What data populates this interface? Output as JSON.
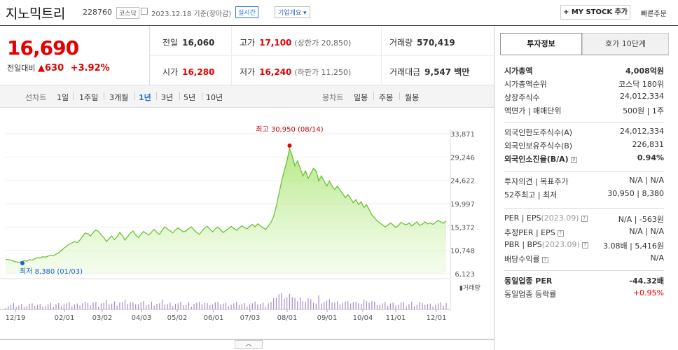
{
  "header": {
    "name": "지노믹트리",
    "code": "228760",
    "market": "코스닥",
    "asof": "2023.12.18 기준(장마감)",
    "realtime": "실시간",
    "company_info": "기업개요 ▾",
    "mystock": "+ MY STOCK 추가",
    "quick_order": "빠른주문"
  },
  "price": {
    "current": "16,690",
    "change_label": "전일대비",
    "change_arrow": "▲",
    "change": "630",
    "change_pct": "+3.92%"
  },
  "stats": {
    "prev_label": "전일",
    "prev": "16,060",
    "high_label": "고가",
    "high": "17,100",
    "upper_limit": "(상한가 20,850)",
    "volume_label": "거래량",
    "volume": "570,419",
    "open_label": "시가",
    "open": "16,280",
    "low_label": "저가",
    "low": "16,240",
    "lower_limit": "(하한가 11,250)",
    "value_label": "거래대금",
    "value": "9,547 백만"
  },
  "periods": {
    "line_label": "선차트",
    "items": [
      "1일",
      "1주일",
      "3개월",
      "1년",
      "3년",
      "5년",
      "10년"
    ],
    "selected": "1년",
    "candle_label": "봉차트",
    "candle_items": [
      "일봉",
      "주봉",
      "월봉"
    ]
  },
  "chart_data": {
    "type": "area",
    "y_ticks": [
      "33,871",
      "29,246",
      "24,622",
      "19,997",
      "15,372",
      "10,748",
      "6,123"
    ],
    "ylim": [
      6123,
      33871
    ],
    "x_ticks": [
      "12/19",
      "02/01",
      "03/02",
      "04/03",
      "05/02",
      "06/01",
      "07/03",
      "08/01",
      "09/01",
      "10/04",
      "11/01",
      "12/01"
    ],
    "high_annotation": "최고 30,950 (08/14)",
    "low_annotation": "최저 8,380 (01/03)",
    "volume_legend": "거래량",
    "series": [
      {
        "values": [
          9000,
          8900,
          8800,
          8600,
          8450,
          8380,
          8500,
          8700,
          8600,
          8900,
          8800,
          9100,
          9300,
          9200,
          9500,
          9400,
          9600,
          9800,
          9700,
          10000,
          10300,
          10700,
          11200,
          11600,
          12000,
          12200,
          12500,
          12300,
          12800,
          13500,
          14200,
          14000,
          13600,
          14300,
          14800,
          14500,
          13800,
          13300,
          12500,
          13100,
          13600,
          12900,
          13400,
          14300,
          13700,
          12800,
          13500,
          14200,
          14600,
          13800,
          13300,
          13900,
          14500,
          14100,
          13800,
          14400,
          14900,
          14300,
          13900,
          14800,
          15400,
          15000,
          14600,
          14200,
          14800,
          15200,
          14800,
          14400,
          14600,
          15100,
          15400,
          14800,
          14300,
          13900,
          14600,
          15200,
          15500,
          14900,
          14400,
          15000,
          15400,
          14800,
          14300,
          14700,
          15100,
          15500,
          15100,
          14700,
          15200,
          15600,
          15300,
          15000,
          15500,
          15900,
          15400,
          16000,
          15600,
          15200,
          14900,
          15600,
          16300,
          17500,
          19500,
          22000,
          24500,
          26500,
          28500,
          30950,
          29500,
          27500,
          28500,
          27000,
          25500,
          26500,
          25000,
          26000,
          27000,
          26500,
          24500,
          25500,
          24500,
          23500,
          24500,
          23500,
          22800,
          23500,
          22700,
          22000,
          21200,
          21800,
          21000,
          20200,
          20800,
          19800,
          20400,
          19200,
          19800,
          18800,
          17800,
          17200,
          16600,
          16200,
          15800,
          15400,
          15700,
          16200,
          15800,
          15300,
          15700,
          16300,
          16000,
          15800,
          16200,
          15600,
          16000,
          16400,
          15700,
          15900,
          16400,
          16000,
          16200,
          15900,
          16300,
          16700,
          16400,
          16100,
          16690
        ]
      }
    ]
  },
  "info": {
    "tab_active": "투자정보",
    "tab_other": "호가 10단계",
    "rows1": [
      {
        "k": "시가총액",
        "v": "4,008억원",
        "b": true
      },
      {
        "k": "시가총액순위",
        "v": "코스닥 180위"
      },
      {
        "k": "상장주식수",
        "v": "24,012,334"
      },
      {
        "k": "액면가 | 매매단위",
        "v": "500원 | 1주"
      }
    ],
    "rows2": [
      {
        "k": "외국인한도주식수(A)",
        "v": "24,012,334"
      },
      {
        "k": "외국인보유주식수(B)",
        "v": "226,831"
      },
      {
        "k": "외국인소진율(B/A)",
        "v": "0.94%",
        "b": true
      }
    ],
    "rows3": [
      {
        "k": "투자의견 | 목표주가",
        "v": "N/A | N/A"
      },
      {
        "k": "52주최고 | 최저",
        "v": "30,950 | 8,380"
      }
    ],
    "rows4": [
      {
        "k": "PER | EPS",
        "note": "(2023.09)",
        "v": "N/A | -563원"
      },
      {
        "k": "추정PER | EPS",
        "v": "N/A | N/A"
      },
      {
        "k": "PBR | BPS",
        "note": "(2023.09)",
        "v": "3.08배 | 5,416원"
      },
      {
        "k": "배당수익률",
        "v": "N/A"
      }
    ],
    "rows5": [
      {
        "k": "동일업종 PER",
        "v": "-44.32배",
        "b": true
      },
      {
        "k": "동일업종 등락률",
        "v": "+0.95%",
        "red": true
      }
    ]
  }
}
